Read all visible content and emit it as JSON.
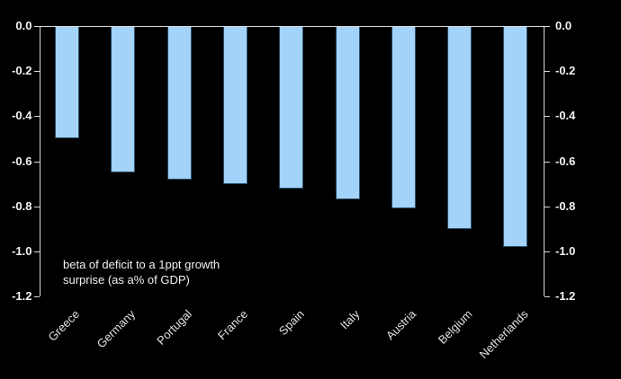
{
  "chart_data": {
    "type": "bar",
    "categories": [
      "Greece",
      "Germany",
      "Portugal",
      "France",
      "Spain",
      "Italy",
      "Austria",
      "Belgium",
      "Netherlands"
    ],
    "values": [
      -0.5,
      -0.65,
      -0.68,
      -0.7,
      -0.72,
      -0.77,
      -0.81,
      -0.9,
      -0.98
    ],
    "title": "",
    "xlabel": "",
    "ylabel": "",
    "ylim": [
      -1.2,
      0.0
    ],
    "ytick_step": 0.2,
    "ytick_labels": [
      "0.0",
      "-0.2",
      "-0.4",
      "-0.6",
      "-0.8",
      "-1.0",
      "-1.2"
    ],
    "y_axis_sides": "both",
    "grid": false,
    "legend": null,
    "annotation": [
      "beta of deficit to a 1ppt growth",
      "surprise (as a% of GDP)"
    ],
    "colors": {
      "background": "#000000",
      "bar_fill": "#a3d3f9",
      "bar_edge": "#2d4d68",
      "axis": "#d9d9d9",
      "tick_label": "#f2f2f2",
      "category_label": "#e0e0e0",
      "annotation_text": "#f2f2f2"
    }
  }
}
